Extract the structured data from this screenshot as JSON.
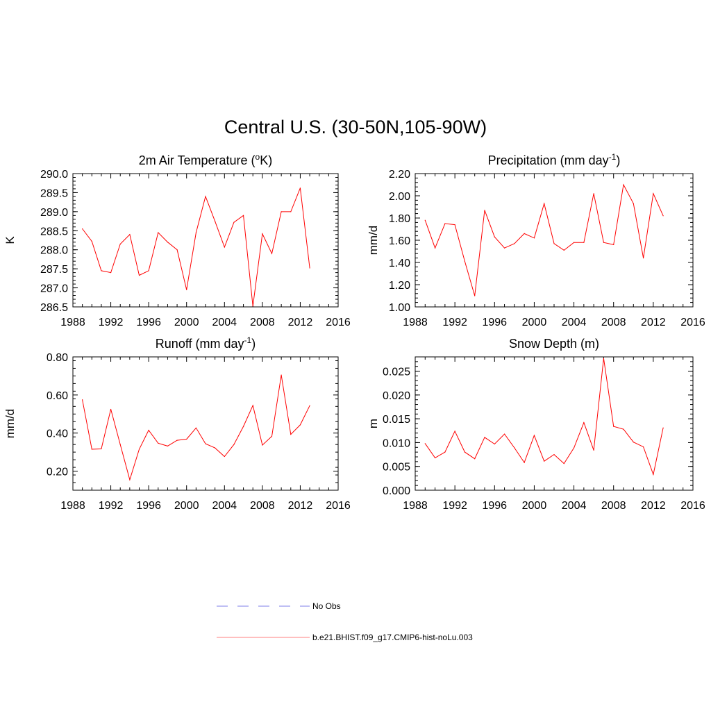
{
  "main_title": "Central U.S. (30-50N,105-90W)",
  "legend": [
    {
      "label": "No Obs",
      "color": "#9999ee",
      "dash": true
    },
    {
      "label": "b.e21.BHIST.f09_g17.CMIP6-hist-noLu.003",
      "color": "#ff9999",
      "dash": false
    }
  ],
  "line_color": "#ff0000",
  "chart_data": [
    {
      "type": "line",
      "title": "2m Air Temperature (",
      "title_sup": "o",
      "title_tail": "K)",
      "ylabel": "K",
      "xlim": [
        1988,
        2016
      ],
      "ylim": [
        286.5,
        290.0
      ],
      "xticks": [
        "1988",
        "1992",
        "1996",
        "2000",
        "2004",
        "2008",
        "2012",
        "2016"
      ],
      "yticks": [
        "286.5",
        "287.0",
        "287.5",
        "288.0",
        "288.5",
        "289.0",
        "289.5",
        "290.0"
      ],
      "x": [
        1989,
        1990,
        1991,
        1992,
        1993,
        1994,
        1995,
        1996,
        1997,
        1998,
        1999,
        2000,
        2001,
        2002,
        2003,
        2004,
        2005,
        2006,
        2007,
        2008,
        2009,
        2010,
        2011,
        2012,
        2013
      ],
      "y": [
        288.55,
        288.22,
        287.45,
        287.4,
        288.15,
        288.4,
        287.33,
        287.45,
        288.45,
        288.2,
        288.0,
        286.95,
        288.45,
        289.4,
        288.75,
        288.07,
        288.72,
        288.9,
        286.52,
        288.42,
        287.9,
        289.0,
        289.0,
        289.62,
        287.52
      ]
    },
    {
      "type": "line",
      "title": "Precipitation (mm day",
      "title_sup": "-1",
      "title_tail": ")",
      "ylabel": "mm/d",
      "xlim": [
        1988,
        2016
      ],
      "ylim": [
        1.0,
        2.2
      ],
      "xticks": [
        "1988",
        "1992",
        "1996",
        "2000",
        "2004",
        "2008",
        "2012",
        "2016"
      ],
      "yticks": [
        "1.00",
        "1.20",
        "1.40",
        "1.60",
        "1.80",
        "2.00",
        "2.20"
      ],
      "x": [
        1989,
        1990,
        1991,
        1992,
        1993,
        1994,
        1995,
        1996,
        1997,
        1998,
        1999,
        2000,
        2001,
        2002,
        2003,
        2004,
        2005,
        2006,
        2007,
        2008,
        2009,
        2010,
        2011,
        2012,
        2013
      ],
      "y": [
        1.78,
        1.53,
        1.75,
        1.74,
        1.41,
        1.1,
        1.87,
        1.63,
        1.53,
        1.57,
        1.66,
        1.62,
        1.93,
        1.57,
        1.51,
        1.58,
        1.58,
        2.02,
        1.58,
        1.56,
        2.1,
        1.93,
        1.44,
        2.02,
        1.82
      ]
    },
    {
      "type": "line",
      "title": "Runoff (mm day",
      "title_sup": "-1",
      "title_tail": ")",
      "ylabel": "mm/d",
      "xlim": [
        1988,
        2016
      ],
      "ylim": [
        0.1,
        0.8
      ],
      "xticks": [
        "1988",
        "1992",
        "1996",
        "2000",
        "2004",
        "2008",
        "2012",
        "2016"
      ],
      "yticks": [
        "0.20",
        "0.40",
        "0.60",
        "0.80"
      ],
      "x": [
        1989,
        1990,
        1991,
        1992,
        1993,
        1994,
        1995,
        1996,
        1997,
        1998,
        1999,
        2000,
        2001,
        2002,
        2003,
        2004,
        2005,
        2006,
        2007,
        2008,
        2009,
        2010,
        2011,
        2012,
        2013
      ],
      "y": [
        0.575,
        0.315,
        0.317,
        0.525,
        0.34,
        0.155,
        0.315,
        0.415,
        0.347,
        0.332,
        0.362,
        0.368,
        0.427,
        0.344,
        0.322,
        0.277,
        0.34,
        0.435,
        0.545,
        0.337,
        0.383,
        0.705,
        0.393,
        0.443,
        0.544
      ]
    },
    {
      "type": "line",
      "title": "Snow Depth (m)",
      "title_sup": "",
      "title_tail": "",
      "ylabel": "m",
      "xlim": [
        1988,
        2016
      ],
      "ylim": [
        0.0,
        0.028
      ],
      "xticks": [
        "1988",
        "1992",
        "1996",
        "2000",
        "2004",
        "2008",
        "2012",
        "2016"
      ],
      "yticks": [
        "0.000",
        "0.005",
        "0.010",
        "0.015",
        "0.020",
        "0.025"
      ],
      "x": [
        1989,
        1990,
        1991,
        1992,
        1993,
        1994,
        1995,
        1996,
        1997,
        1998,
        1999,
        2000,
        2001,
        2002,
        2003,
        2004,
        2005,
        2006,
        2007,
        2008,
        2009,
        2010,
        2011,
        2012,
        2013
      ],
      "y": [
        0.0098,
        0.0068,
        0.008,
        0.0124,
        0.008,
        0.0066,
        0.0111,
        0.0097,
        0.0118,
        0.0089,
        0.0058,
        0.0115,
        0.0061,
        0.0075,
        0.0056,
        0.0089,
        0.0142,
        0.0084,
        0.0277,
        0.0134,
        0.0128,
        0.0101,
        0.0091,
        0.0033,
        0.0131
      ]
    }
  ]
}
